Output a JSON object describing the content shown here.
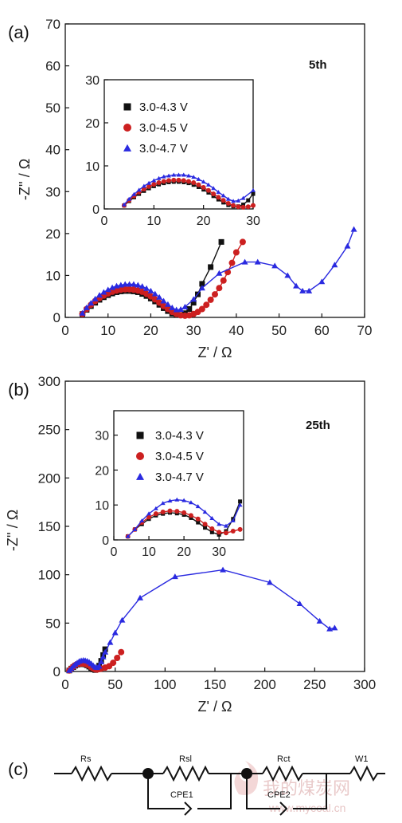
{
  "colors": {
    "black": "#111111",
    "red": "#cc2020",
    "blue": "#2a2ae0"
  },
  "chart_data": [
    {
      "type": "scatter",
      "panel_label": "(a)",
      "cycle_label": "5th",
      "xlabel": "Z' / Ω",
      "ylabel": "-Z'' / Ω",
      "xlim": [
        0,
        70
      ],
      "ylim": [
        0,
        70
      ],
      "xticks": [
        0,
        10,
        20,
        30,
        40,
        50,
        60,
        70
      ],
      "yticks": [
        0,
        10,
        20,
        30,
        40,
        50,
        60,
        70
      ],
      "series": [
        {
          "name": "3.0-4.3 V",
          "color": "#111111",
          "marker": "square",
          "x": [
            4,
            5,
            6,
            7,
            8,
            9,
            10,
            11,
            12,
            13,
            14,
            15,
            16,
            17,
            18,
            19,
            20,
            21,
            22,
            23,
            24,
            25,
            26,
            27,
            28,
            29,
            30,
            31,
            32,
            34,
            36.5
          ],
          "y": [
            0.8,
            1.8,
            2.7,
            3.5,
            4.2,
            4.8,
            5.3,
            5.7,
            6.0,
            6.2,
            6.3,
            6.3,
            6.2,
            6.0,
            5.6,
            5.1,
            4.5,
            3.8,
            3.0,
            2.2,
            1.5,
            0.9,
            0.6,
            0.6,
            1.0,
            2.0,
            3.5,
            5.5,
            8.0,
            12.0,
            18.0
          ]
        },
        {
          "name": "3.0-4.5 V",
          "color": "#cc2020",
          "marker": "circle",
          "x": [
            4,
            5,
            6,
            7,
            8,
            9,
            10,
            11,
            12,
            13,
            14,
            15,
            16,
            17,
            18,
            19,
            20,
            21,
            22,
            23,
            24,
            25,
            26,
            27,
            28,
            29,
            30,
            31,
            32,
            33,
            34,
            35,
            36,
            37,
            38,
            39,
            40,
            41.5
          ],
          "y": [
            0.8,
            2.0,
            3.0,
            3.9,
            4.6,
            5.2,
            5.7,
            6.1,
            6.4,
            6.6,
            6.7,
            6.7,
            6.6,
            6.4,
            6.1,
            5.6,
            5.0,
            4.3,
            3.5,
            2.7,
            2.0,
            1.3,
            0.8,
            0.5,
            0.4,
            0.5,
            0.8,
            1.3,
            2.0,
            3.0,
            4.2,
            5.5,
            7.0,
            8.8,
            10.8,
            13.0,
            15.5,
            18.0
          ]
        },
        {
          "name": "3.0-4.7 V",
          "color": "#2a2ae0",
          "marker": "triangle",
          "x": [
            4,
            5,
            6,
            7,
            8,
            9,
            10,
            11,
            12,
            13,
            14,
            15,
            16,
            17,
            18,
            19,
            20,
            21,
            22,
            23,
            24,
            25,
            26,
            27,
            28,
            30,
            32,
            36,
            42,
            45,
            49,
            52,
            54,
            55.5,
            57,
            60,
            63,
            66,
            67.5
          ],
          "y": [
            1.0,
            2.3,
            3.4,
            4.4,
            5.3,
            6.0,
            6.6,
            7.1,
            7.5,
            7.7,
            7.9,
            7.9,
            7.9,
            7.7,
            7.4,
            6.9,
            6.3,
            5.6,
            4.8,
            3.9,
            3.1,
            2.3,
            1.8,
            1.9,
            2.5,
            4.3,
            7.0,
            10.5,
            13.2,
            13.2,
            12.3,
            10.0,
            7.5,
            6.3,
            6.3,
            8.5,
            12.5,
            17.0,
            21.0
          ]
        }
      ],
      "inset": {
        "xlim": [
          0,
          30
        ],
        "ylim": [
          0,
          30
        ],
        "xticks": [
          0,
          10,
          20,
          30
        ],
        "yticks": [
          0,
          10,
          20,
          30
        ],
        "legend_position": "top-left"
      }
    },
    {
      "type": "scatter",
      "panel_label": "(b)",
      "cycle_label": "25th",
      "xlabel": "Z' / Ω",
      "ylabel": "-Z'' / Ω",
      "xlim": [
        0,
        300
      ],
      "ylim": [
        0,
        300
      ],
      "xticks": [
        0,
        50,
        100,
        150,
        200,
        250,
        300
      ],
      "yticks": [
        0,
        50,
        100,
        150,
        200,
        250,
        300
      ],
      "series": [
        {
          "name": "3.0-4.3 V",
          "color": "#111111",
          "marker": "square",
          "x": [
            4,
            6,
            8,
            10,
            12,
            14,
            16,
            18,
            20,
            22,
            24,
            26,
            28,
            30,
            32,
            34,
            36,
            38,
            40
          ],
          "y": [
            1,
            3,
            4.5,
            6,
            7,
            7.5,
            7.8,
            7.6,
            7.2,
            6.3,
            5,
            3.5,
            2.2,
            1.5,
            2.5,
            6,
            11,
            17,
            23
          ]
        },
        {
          "name": "3.0-4.5 V",
          "color": "#cc2020",
          "marker": "circle",
          "x": [
            4,
            6,
            8,
            10,
            12,
            14,
            16,
            18,
            20,
            22,
            24,
            26,
            28,
            30,
            32,
            34,
            36,
            40,
            44,
            48,
            52,
            56
          ],
          "y": [
            1,
            3,
            5,
            6.5,
            7.5,
            8,
            8.3,
            8.2,
            7.8,
            7,
            6,
            4.5,
            3.2,
            2.2,
            2,
            2.5,
            3,
            4,
            5.5,
            9,
            14,
            20
          ]
        },
        {
          "name": "3.0-4.7 V",
          "color": "#2a2ae0",
          "marker": "triangle",
          "x": [
            4,
            6,
            8,
            10,
            12,
            14,
            16,
            18,
            20,
            22,
            24,
            26,
            28,
            30,
            32,
            34,
            36,
            38,
            40,
            45,
            50,
            57,
            75,
            110,
            158,
            205,
            235,
            255,
            265,
            270
          ],
          "y": [
            1,
            3,
            5.5,
            7.5,
            9,
            10.5,
            11.2,
            11.5,
            11.3,
            10.7,
            9.6,
            8,
            6.2,
            4.5,
            4,
            5.5,
            10,
            15,
            20,
            30,
            40,
            53,
            76,
            98,
            105,
            92,
            70,
            52,
            44,
            45
          ]
        }
      ],
      "inset": {
        "xlim": [
          0,
          37
        ],
        "ylim": [
          0,
          37
        ],
        "xticks": [
          0,
          10,
          20,
          30
        ],
        "yticks": [
          0,
          10,
          20,
          30
        ],
        "legend_position": "top-center"
      }
    }
  ],
  "circuit": {
    "panel_label": "(c)",
    "components": [
      "Rs",
      "Rsl",
      "Rct",
      "W1",
      "CPE1",
      "CPE2"
    ]
  },
  "watermark": {
    "cn": "我的煤炭网",
    "url": "www.mycoal.cn"
  }
}
